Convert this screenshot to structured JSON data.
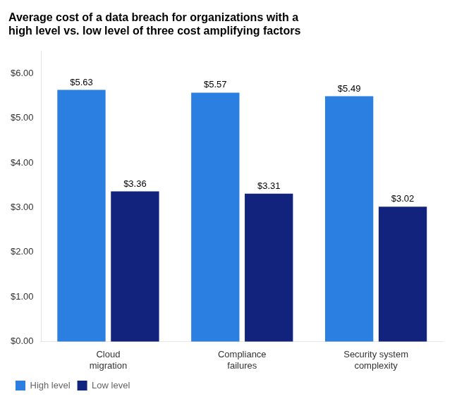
{
  "chart_data": {
    "type": "bar",
    "title": "Average cost of a data breach for organizations with a\nhigh level vs. low level of three cost amplifying factors",
    "categories": [
      "Cloud\nmigration",
      "Compliance\nfailures",
      "Security system\ncomplexity"
    ],
    "series": [
      {
        "name": "High level",
        "color": "#2B7FE0",
        "values": [
          5.63,
          5.57,
          5.49
        ],
        "value_labels": [
          "$5.63",
          "$5.57",
          "$5.49"
        ]
      },
      {
        "name": "Low level",
        "color": "#12237E",
        "values": [
          3.36,
          3.31,
          3.02
        ],
        "value_labels": [
          "$3.36",
          "$3.31",
          "$3.02"
        ]
      }
    ],
    "ylim": [
      0,
      6.5
    ],
    "yticks": [
      {
        "value": 0.0,
        "label": "$0.00"
      },
      {
        "value": 1.0,
        "label": "$1.00"
      },
      {
        "value": 2.0,
        "label": "$2.00"
      },
      {
        "value": 3.0,
        "label": "$3.00"
      },
      {
        "value": 4.0,
        "label": "$4.00"
      },
      {
        "value": 5.0,
        "label": "$5.00"
      },
      {
        "value": 6.0,
        "label": "$6.00"
      }
    ],
    "grid": false,
    "legend": "lower left",
    "data_labels": true
  }
}
